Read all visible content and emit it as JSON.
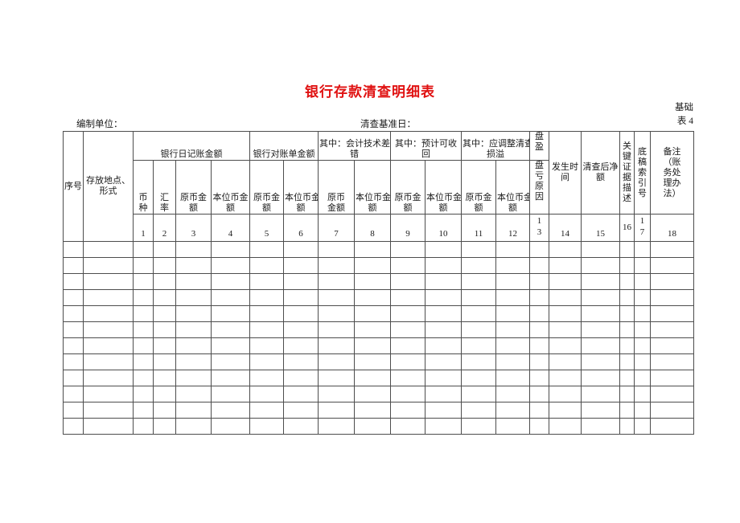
{
  "page": {
    "title": "银行存款清查明细表",
    "title_color": "#e01111",
    "form_tag": "基础\n表 4",
    "prepared_by_label": "编制单位：",
    "base_date_label": "清查基准日："
  },
  "table": {
    "header": {
      "seq": "序号",
      "location": "存放地点、\n形式",
      "group_journal": "银行日记账金额",
      "group_statement": "银行对账单金额",
      "group_tech_error": "其中：会计技术差\n错",
      "group_recoverable": "其中：预计可收\n回",
      "group_adjust": "其中：应调整清查\n损溢",
      "surplus_top": "盘\n盈",
      "surplus_bottom": "盘\n亏\n原\n因",
      "occur_time": "发生时\n间",
      "net_after": "清查后净\n额",
      "key_evidence": "关\n键\n证\n据\n描\n述",
      "draft_index": "底\n稿\n索\n引\n号",
      "remark": "备注\n（账\n务处\n理办\n法）",
      "sub_cols": [
        "币\n种",
        "汇\n率",
        "原币金\n额",
        "本位币金\n额",
        "原币金\n额",
        "本位币金\n额",
        "原币\n金额",
        "本位币金\n额",
        "原币金\n额",
        "本位币金\n额",
        "原币金\n额",
        "本位币金\n额"
      ]
    },
    "col_numbers": [
      "1",
      "2",
      "3",
      "4",
      "5",
      "6",
      "7",
      "8",
      "9",
      "10",
      "11",
      "12",
      "1\n3",
      "14",
      "15",
      "16",
      "1\n7",
      "18"
    ],
    "column_count": 20,
    "empty_row_count": 12
  }
}
